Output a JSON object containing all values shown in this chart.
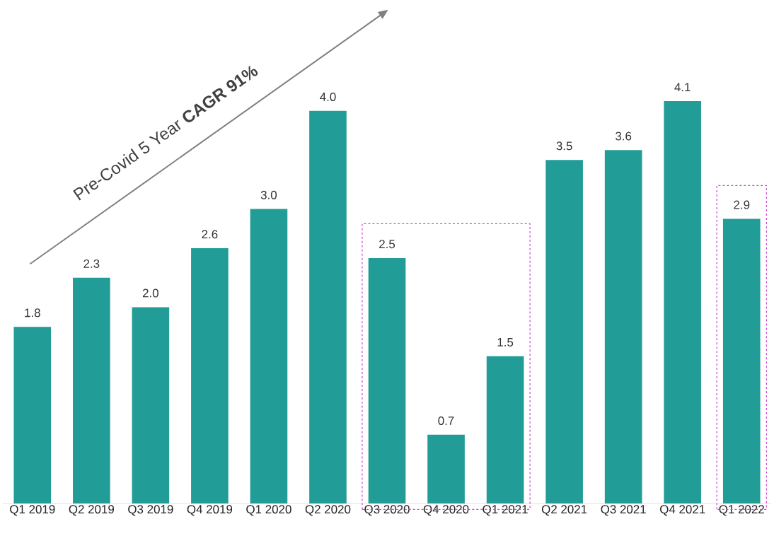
{
  "chart_data": {
    "type": "bar",
    "categories": [
      "Q1 2019",
      "Q2 2019",
      "Q3 2019",
      "Q4 2019",
      "Q1 2020",
      "Q2 2020",
      "Q3 2020",
      "Q4 2020",
      "Q1 2021",
      "Q2 2021",
      "Q3 2021",
      "Q4 2021",
      "Q1 2022"
    ],
    "values": [
      1.8,
      2.3,
      2.0,
      2.6,
      3.0,
      4.0,
      2.5,
      0.7,
      1.5,
      3.5,
      3.6,
      4.1,
      2.9
    ],
    "color": "#219c96",
    "value_labels": [
      "1.8",
      "2.3",
      "2.0",
      "2.6",
      "3.0",
      "4.0",
      "2.5",
      "0.7",
      "1.5",
      "3.5",
      "3.6",
      "4.1",
      "2.9"
    ],
    "annotations": [
      "Pre-Covid 5 Year **CAGR 91%**"
    ]
  }
}
